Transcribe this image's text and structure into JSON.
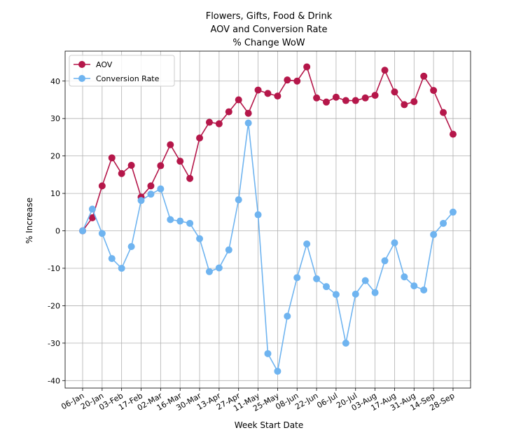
{
  "chart_data": {
    "type": "line",
    "title": [
      "Flowers, Gifts, Food & Drink",
      "AOV and Conversion Rate",
      "% Change WoW"
    ],
    "xlabel": "Week Start Date",
    "ylabel": "% Increase",
    "ylim": [
      -42,
      48
    ],
    "yticks": [
      -40,
      -30,
      -20,
      -10,
      0,
      10,
      20,
      30,
      40
    ],
    "grid": true,
    "legend_position": "top-left",
    "x_tick_labels": [
      "06-Jan",
      "20-Jan",
      "03-Feb",
      "17-Feb",
      "02-Mar",
      "16-Mar",
      "30-Mar",
      "13-Apr",
      "27-Apr",
      "11-May",
      "25-May",
      "08-Jun",
      "22-Jun",
      "06-Jul",
      "20-Jul",
      "03-Aug",
      "17-Aug",
      "31-Aug",
      "14-Sep",
      "28-Sep"
    ],
    "x_weeks": [
      "06-Jan",
      "13-Jan",
      "20-Jan",
      "27-Jan",
      "03-Feb",
      "10-Feb",
      "17-Feb",
      "24-Feb",
      "02-Mar",
      "09-Mar",
      "16-Mar",
      "23-Mar",
      "30-Mar",
      "06-Apr",
      "13-Apr",
      "20-Apr",
      "27-Apr",
      "04-May",
      "11-May",
      "18-May",
      "25-May",
      "01-Jun",
      "08-Jun",
      "15-Jun",
      "22-Jun",
      "29-Jun",
      "06-Jul",
      "13-Jul",
      "20-Jul",
      "27-Jul",
      "03-Aug",
      "10-Aug",
      "17-Aug",
      "24-Aug",
      "31-Aug",
      "07-Sep",
      "14-Sep",
      "21-Sep",
      "28-Sep"
    ],
    "series": [
      {
        "name": "AOV",
        "color": "#b5174a",
        "values": [
          0,
          3.5,
          12,
          19.5,
          15.3,
          17.5,
          9,
          12,
          17.4,
          23,
          18.6,
          14,
          24.8,
          29,
          28.6,
          31.8,
          35,
          31.4,
          37.6,
          36.7,
          36,
          40.3,
          40,
          43.8,
          35.5,
          34.4,
          35.7,
          34.8,
          34.8,
          35.5,
          36.2,
          42.9,
          37.1,
          33.7,
          34.5,
          41.3,
          37.5,
          31.6,
          25.8
        ]
      },
      {
        "name": "Conversion Rate",
        "color": "#6fb4f0",
        "values": [
          0,
          5.8,
          -0.7,
          -7.4,
          -10,
          -4.2,
          8.1,
          9.8,
          11.2,
          3,
          2.6,
          2,
          -2.1,
          -10.9,
          -9.9,
          -5.1,
          8.3,
          28.8,
          4.3,
          -32.8,
          -37.5,
          -22.8,
          -12.5,
          -3.5,
          -12.8,
          -14.9,
          -17,
          -30,
          -16.9,
          -13.3,
          -16.5,
          -8,
          -3.2,
          -12.3,
          -14.7,
          -15.8,
          -1,
          2,
          5
        ]
      }
    ]
  }
}
